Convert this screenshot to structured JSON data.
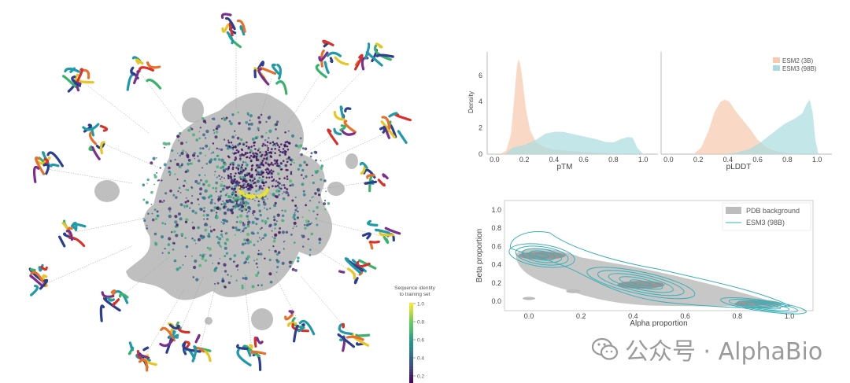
{
  "watermark": {
    "text": "公众号 · AlphaBio",
    "icon": "wechat-icon"
  },
  "colorbar": {
    "title_line1": "Sequence identity",
    "title_line2": "to training set",
    "ticks": [
      "1.0",
      "0.8",
      "0.6",
      "0.4",
      "0.2"
    ],
    "colormap": "viridis"
  },
  "chart_data": [
    {
      "type": "area",
      "panel": "density-ptm",
      "xlabel": "pTM",
      "ylabel": "Density",
      "xlim": [
        -0.05,
        1.1
      ],
      "ylim": [
        0,
        7.5
      ],
      "xticks": [
        "0.0",
        "0.2",
        "0.4",
        "0.6",
        "0.8",
        "1.0"
      ],
      "yticks": [
        "0",
        "2",
        "4",
        "6"
      ],
      "series": [
        {
          "name": "ESM2 (3B)",
          "color": "#f7c9ae",
          "x": [
            0.04,
            0.08,
            0.11,
            0.13,
            0.15,
            0.16,
            0.17,
            0.19,
            0.21,
            0.24,
            0.28,
            0.33,
            0.4,
            0.5,
            0.6,
            0.7,
            0.8,
            0.9
          ],
          "y": [
            0,
            0.3,
            1.5,
            4.0,
            6.6,
            7.2,
            7.0,
            5.5,
            3.5,
            1.8,
            0.9,
            0.55,
            0.35,
            0.25,
            0.15,
            0.1,
            0.05,
            0
          ]
        },
        {
          "name": "ESM3 (98B)",
          "color": "#a9dbe0",
          "x": [
            0.07,
            0.12,
            0.2,
            0.28,
            0.34,
            0.4,
            0.46,
            0.52,
            0.6,
            0.68,
            0.75,
            0.8,
            0.85,
            0.9,
            0.93,
            0.96,
            1.0
          ],
          "y": [
            0,
            0.5,
            0.7,
            1.1,
            1.55,
            1.7,
            1.7,
            1.55,
            1.35,
            1.15,
            0.92,
            0.9,
            1.15,
            1.3,
            1.25,
            0.5,
            0
          ]
        }
      ]
    },
    {
      "type": "area",
      "panel": "density-plddt",
      "xlabel": "pLDDT",
      "xlim": [
        -0.05,
        1.1
      ],
      "ylim": [
        0,
        7.5
      ],
      "xticks": [
        "0.0",
        "0.2",
        "0.4",
        "0.6",
        "0.8",
        "1.0"
      ],
      "legend": "top-right",
      "series": [
        {
          "name": "ESM2 (3B)",
          "color": "#f7c9ae",
          "x": [
            0.17,
            0.22,
            0.27,
            0.31,
            0.35,
            0.38,
            0.41,
            0.45,
            0.5,
            0.55,
            0.6,
            0.65,
            0.7,
            0.8,
            0.9
          ],
          "y": [
            0,
            0.5,
            1.8,
            3.2,
            4.0,
            4.15,
            4.0,
            3.3,
            2.6,
            1.9,
            1.1,
            0.6,
            0.3,
            0.08,
            0
          ]
        },
        {
          "name": "ESM3 (98B)",
          "color": "#a9dbe0",
          "x": [
            0.35,
            0.45,
            0.55,
            0.62,
            0.7,
            0.78,
            0.85,
            0.9,
            0.93,
            0.95,
            0.97,
            0.99,
            1.01
          ],
          "y": [
            0,
            0.1,
            0.4,
            0.9,
            1.6,
            2.3,
            2.7,
            3.1,
            3.8,
            4.15,
            3.2,
            1.0,
            0
          ]
        }
      ]
    },
    {
      "type": "contour",
      "panel": "secondary-structure",
      "xlabel": "Alpha proportion",
      "ylabel": "Beta proportion",
      "xlim": [
        -0.1,
        1.08
      ],
      "ylim": [
        -0.1,
        1.08
      ],
      "xticks": [
        "0.0",
        "0.2",
        "0.4",
        "0.6",
        "0.8",
        "1.0"
      ],
      "yticks": [
        "0.0",
        "0.2",
        "0.4",
        "0.6",
        "0.8",
        "1.0"
      ],
      "legend": "top-right",
      "series": [
        {
          "name": "PDB background",
          "color": "#bdbdbd",
          "modes": [
            {
              "x": 0.05,
              "y": 0.5
            },
            {
              "x": 0.43,
              "y": 0.18
            },
            {
              "x": 0.88,
              "y": -0.03
            }
          ]
        },
        {
          "name": "ESM3 (98B)",
          "color": "#3bb0b8",
          "modes": [
            {
              "x": 0.05,
              "y": 0.5
            },
            {
              "x": 0.43,
              "y": 0.2
            },
            {
              "x": 0.9,
              "y": -0.05
            }
          ]
        }
      ]
    }
  ]
}
